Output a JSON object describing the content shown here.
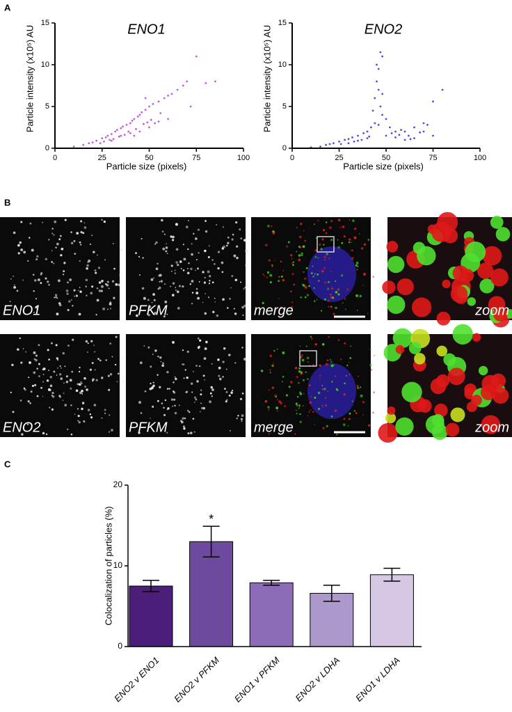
{
  "figure": {
    "panel_labels": [
      "A",
      "B",
      "C"
    ],
    "image_labels": [
      [
        "ENO1",
        "PFKM",
        "merge",
        "zoom"
      ],
      [
        "ENO2",
        "PFKM",
        "merge",
        "zoom"
      ]
    ]
  },
  "chart_data": [
    {
      "type": "scatter",
      "title": "ENO1",
      "x_label": "Particle size (pixels)",
      "y_label": "Particle intensity (x10⁵) AU",
      "color": "#c25be0",
      "xlim": [
        0,
        100
      ],
      "ylim": [
        0,
        15
      ],
      "xticks": [
        0,
        25,
        50,
        75,
        100
      ],
      "yticks": [
        0,
        5,
        10,
        15
      ],
      "x": [
        10,
        15,
        18,
        20,
        22,
        25,
        27,
        28,
        30,
        32,
        33,
        35,
        36,
        38,
        40,
        41,
        42,
        44,
        45,
        46,
        48,
        50,
        52,
        55,
        58,
        60,
        62,
        65,
        68,
        70,
        75,
        80,
        85,
        35,
        40,
        45,
        50,
        55,
        60,
        30,
        42,
        48,
        53,
        72,
        24,
        26,
        29,
        31,
        34,
        37,
        39,
        43,
        47,
        49,
        51,
        56
      ],
      "values": [
        0.2,
        0.4,
        0.6,
        0.7,
        0.9,
        1.2,
        1.3,
        1.5,
        1.7,
        2.0,
        2.2,
        2.4,
        2.6,
        2.8,
        3.0,
        3.3,
        3.5,
        3.8,
        4.0,
        4.3,
        4.6,
        5.0,
        5.3,
        5.6,
        6.0,
        6.3,
        6.5,
        7.0,
        7.5,
        8.0,
        11.0,
        7.8,
        8.0,
        1.5,
        1.8,
        2.0,
        2.5,
        3.2,
        3.5,
        0.9,
        1.5,
        6.0,
        3.0,
        5.0,
        0.6,
        0.8,
        1.0,
        1.1,
        1.4,
        1.6,
        2.0,
        2.3,
        2.9,
        3.1,
        3.4,
        4.2
      ]
    },
    {
      "type": "scatter",
      "title": "ENO2",
      "x_label": "Particle size (pixels)",
      "y_label": "Particle intensity (x10⁵) AU",
      "color": "#4c4ce8",
      "xlim": [
        0,
        100
      ],
      "ylim": [
        0,
        15
      ],
      "xticks": [
        0,
        25,
        50,
        75,
        100
      ],
      "yticks": [
        0,
        5,
        10,
        15
      ],
      "x": [
        10,
        15,
        18,
        20,
        22,
        25,
        28,
        30,
        32,
        35,
        38,
        40,
        42,
        43,
        44,
        45,
        45,
        46,
        46,
        47,
        47,
        48,
        48,
        50,
        52,
        55,
        58,
        60,
        62,
        65,
        70,
        72,
        75,
        75,
        80,
        30,
        35,
        40,
        50,
        55,
        60,
        65,
        70,
        44,
        46,
        48,
        26,
        33,
        37,
        41,
        53,
        57,
        63,
        68
      ],
      "values": [
        0.1,
        0.2,
        0.4,
        0.5,
        0.6,
        0.8,
        1.0,
        1.1,
        1.3,
        1.5,
        1.8,
        2.0,
        2.5,
        4.5,
        6.0,
        8.0,
        10.0,
        7.0,
        9.5,
        11.5,
        5.0,
        11.0,
        6.5,
        3.5,
        2.5,
        2.0,
        2.2,
        2.0,
        1.5,
        2.5,
        3.0,
        2.8,
        5.6,
        1.5,
        7.0,
        0.6,
        0.9,
        1.2,
        1.5,
        1.3,
        1.0,
        1.2,
        2.0,
        3.0,
        2.8,
        4.0,
        0.5,
        0.8,
        1.0,
        1.4,
        1.8,
        1.6,
        1.1,
        1.9
      ]
    },
    {
      "type": "bar",
      "y_label": "Colocalization of particles (%)",
      "categories": [
        "ENO2 v ENO1",
        "ENO2 v PFKM",
        "ENO1 v PFKM",
        "ENO2 v LDHA",
        "ENO1 v LDHA"
      ],
      "series": [
        {
          "colors": [
            "#4b1e7a",
            "#6e4a9e",
            "#8c6cb6",
            "#ad98cc",
            "#d6c8e4"
          ],
          "values": [
            7.5,
            13.0,
            7.9,
            6.6,
            8.9
          ],
          "errors": [
            0.7,
            1.9,
            0.3,
            1.0,
            0.8
          ]
        }
      ],
      "annotations": [
        {
          "text": "*",
          "category": "ENO2 v PFKM"
        }
      ],
      "ylim": [
        0,
        20
      ],
      "yticks": [
        0,
        10,
        20
      ]
    }
  ]
}
